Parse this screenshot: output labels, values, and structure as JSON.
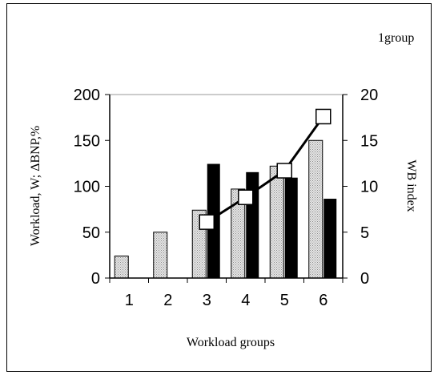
{
  "chart_data": {
    "type": "bar",
    "corner_label": "1group",
    "xlabel": "Workload groups",
    "ylabel_left": "Workload, W; ΔBNP,%",
    "ylabel_right": "WB index",
    "categories": [
      "1",
      "2",
      "3",
      "4",
      "5",
      "6"
    ],
    "left_axis": {
      "ylim": [
        0,
        200
      ],
      "ticks": [
        "0",
        "50",
        "100",
        "150",
        "200"
      ]
    },
    "right_axis": {
      "ylim": [
        0,
        20
      ],
      "ticks": [
        "0",
        "5",
        "10",
        "15",
        "20"
      ]
    },
    "series": [
      {
        "kind": "bar",
        "axis": "left",
        "pattern": "dotted-gray",
        "values": [
          24,
          50,
          74,
          97,
          122,
          150
        ]
      },
      {
        "kind": "bar",
        "axis": "left",
        "pattern": "solid-black",
        "values": [
          null,
          null,
          124,
          115,
          109,
          86
        ]
      },
      {
        "kind": "line",
        "axis": "right",
        "marker": "open-square",
        "values": [
          null,
          null,
          6.1,
          8.8,
          11.7,
          17.6
        ]
      }
    ],
    "grid": false,
    "colors": {
      "dotted_bar": "#c8c8c8",
      "solid_bar": "#000000",
      "line": "#000000"
    }
  }
}
